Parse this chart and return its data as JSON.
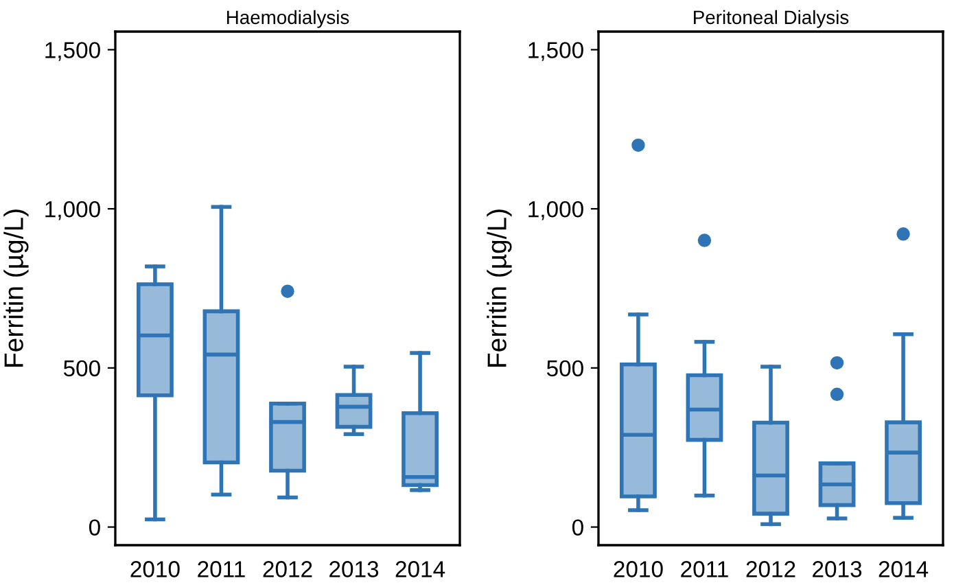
{
  "chart_data": [
    {
      "type": "box",
      "title": "Haemodialysis",
      "ylabel": "Ferritin (µg/L)",
      "categories": [
        "2010",
        "2011",
        "2012",
        "2013",
        "2014"
      ],
      "color": "#2f75b5",
      "ylim": [
        -57,
        1557
      ],
      "yticks": [
        {
          "value": 0,
          "label": "0"
        },
        {
          "value": 500,
          "label": "500"
        },
        {
          "value": 1000,
          "label": "1,000"
        },
        {
          "value": 1500,
          "label": "1,500"
        }
      ],
      "grid": false,
      "boxes": [
        {
          "low": 24,
          "q1": 414,
          "median": 602,
          "q3": 763,
          "high": 819
        },
        {
          "low": 102,
          "q1": 203,
          "median": 542,
          "q3": 678,
          "high": 1006
        },
        {
          "low": 93,
          "q1": 177,
          "median": 330,
          "q3": 388,
          "high": 388,
          "outliers": [
            741
          ]
        },
        {
          "low": 292,
          "q1": 315,
          "median": 378,
          "q3": 415,
          "high": 504
        },
        {
          "low": 116,
          "q1": 132,
          "median": 157,
          "q3": 358,
          "high": 547
        }
      ]
    },
    {
      "type": "box",
      "title": "Peritoneal Dialysis",
      "ylabel": "Ferritin (µg/L)",
      "categories": [
        "2010",
        "2011",
        "2012",
        "2013",
        "2014"
      ],
      "color": "#2f75b5",
      "ylim": [
        -57,
        1557
      ],
      "yticks": [
        {
          "value": 0,
          "label": "0"
        },
        {
          "value": 500,
          "label": "500"
        },
        {
          "value": 1000,
          "label": "1,000"
        },
        {
          "value": 1500,
          "label": "1,500"
        }
      ],
      "grid": false,
      "boxes": [
        {
          "low": 53,
          "q1": 96,
          "median": 290,
          "q3": 511,
          "high": 668,
          "outliers": [
            1200
          ]
        },
        {
          "low": 99,
          "q1": 274,
          "median": 369,
          "q3": 477,
          "high": 582,
          "outliers": [
            901
          ]
        },
        {
          "low": 9,
          "q1": 42,
          "median": 162,
          "q3": 328,
          "high": 504
        },
        {
          "low": 27,
          "q1": 69,
          "median": 134,
          "q3": 200,
          "high": 200,
          "outliers": [
            516,
            417
          ]
        },
        {
          "low": 29,
          "q1": 75,
          "median": 234,
          "q3": 329,
          "high": 606,
          "outliers": [
            921
          ]
        }
      ]
    }
  ]
}
